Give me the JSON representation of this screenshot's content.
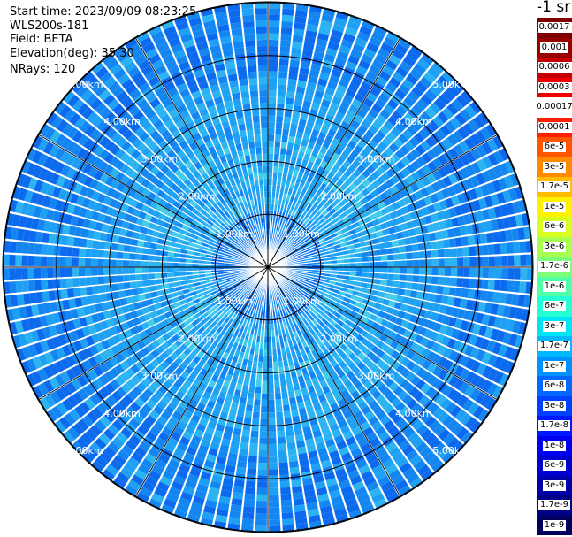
{
  "info": {
    "start_time": "Start time: 2023/09/09 08:23:25",
    "instrument": "WLS200s-181",
    "field": "Field: BETA",
    "elevation": "Elevation(deg): 35.30",
    "nrays": "NRays: 120"
  },
  "chart_data": {
    "type": "ppi-polar",
    "field": "BETA",
    "nrays": 120,
    "elevation_deg": 35.3,
    "range_rings_km": [
      1,
      2,
      3,
      4,
      5
    ],
    "range_labels": [
      "1.00km",
      "2.00km",
      "3.00km",
      "4.00km",
      "5.00km"
    ],
    "max_range_km": 5.0,
    "colorbar": {
      "unit_label": "-1 sr",
      "labels": [
        "0.0017",
        "0.001",
        "0.0006",
        "0.0003",
        "0.00017",
        "0.0001",
        "6e-5",
        "3e-5",
        "1.7e-5",
        "1e-5",
        "6e-6",
        "3e-6",
        "1.7e-6",
        "1e-6",
        "6e-7",
        "3e-7",
        "1.7e-7",
        "1e-7",
        "6e-8",
        "3e-8",
        "1.7e-8",
        "1e-8",
        "6e-9",
        "3e-9",
        "1.7e-9",
        "1e-9"
      ],
      "colors": [
        "#7f0000",
        "#990000",
        "#c40000",
        "#ee0000",
        "#ffffff",
        "#ff2000",
        "#ff5400",
        "#ff8a00",
        "#ffbc00",
        "#fff200",
        "#d8ff20",
        "#a8ff50",
        "#7dff7a",
        "#50ffa8",
        "#24ffd4",
        "#00e4f8",
        "#00b8ff",
        "#0090ff",
        "#0068ff",
        "#0040ff",
        "#0018ff",
        "#0000f0",
        "#0000d0",
        "#0000a8",
        "#000084",
        "#00005c"
      ]
    },
    "background_colors": [
      "#0c6aee",
      "#1486f2",
      "#1ea0f4",
      "#2cb4f2",
      "#43cde9"
    ]
  }
}
